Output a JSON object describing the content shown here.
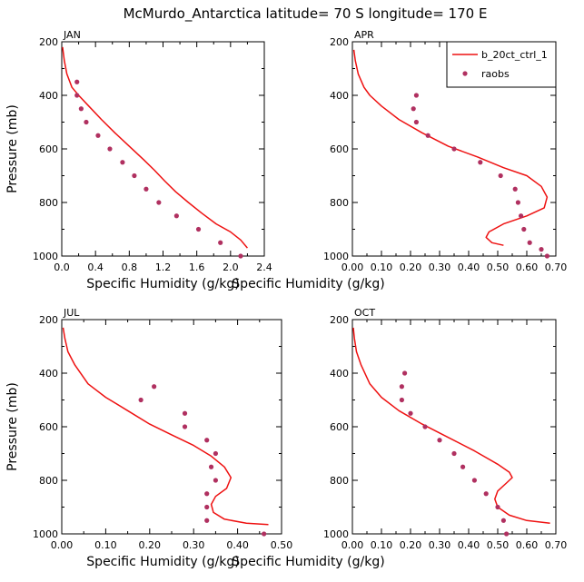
{
  "figure": {
    "title": "McMurdo_Antarctica  latitude= 70 S longitude= 170 E"
  },
  "colors": {
    "model": "#ee1111",
    "obs": "#b03060",
    "axis": "#000000"
  },
  "legend": {
    "model": "b_20ct_ctrl_1",
    "obs": "raobs",
    "placement": "top-right of APR panel"
  },
  "chart_data": [
    {
      "type": "scatter",
      "panel": "JAN",
      "title": "JAN",
      "xlabel": "Specific Humidity (g/kg)",
      "ylabel": "Pressure (mb)",
      "xlim": [
        0,
        2.4
      ],
      "ylim": [
        1000,
        200
      ],
      "y_inverted": true,
      "xticks": [
        "0.0",
        "0.4",
        "0.8",
        "1.2",
        "1.6",
        "2.0",
        "2.4"
      ],
      "yticks": [
        "200",
        "400",
        "600",
        "800",
        "1000"
      ],
      "xtick_values": [
        0,
        0.4,
        0.8,
        1.2,
        1.6,
        2.0,
        2.4
      ],
      "ytick_values": [
        200,
        400,
        600,
        800,
        1000
      ],
      "series": [
        {
          "name": "b_20ct_ctrl_1",
          "kind": "line",
          "x": [
            0.01,
            0.03,
            0.06,
            0.12,
            0.2,
            0.32,
            0.47,
            0.63,
            0.8,
            0.97,
            1.1,
            1.22,
            1.35,
            1.5,
            1.66,
            1.83,
            2.0,
            2.12,
            2.2
          ],
          "y": [
            220,
            270,
            320,
            370,
            400,
            440,
            490,
            540,
            590,
            640,
            680,
            720,
            760,
            800,
            840,
            880,
            910,
            940,
            970
          ]
        },
        {
          "name": "raobs",
          "kind": "scatter",
          "x": [
            0.18,
            0.18,
            0.23,
            0.29,
            0.43,
            0.57,
            0.72,
            0.86,
            1.0,
            1.15,
            1.36,
            1.62,
            1.88,
            2.12
          ],
          "y": [
            350,
            400,
            450,
            500,
            550,
            600,
            650,
            700,
            750,
            800,
            850,
            900,
            950,
            1000
          ]
        }
      ]
    },
    {
      "type": "scatter",
      "panel": "APR",
      "title": "APR",
      "xlabel": "Specific Humidity (g/kg)",
      "ylabel": "",
      "xlim": [
        0,
        0.7
      ],
      "ylim": [
        1000,
        200
      ],
      "y_inverted": true,
      "xticks": [
        "0.00",
        "0.10",
        "0.20",
        "0.30",
        "0.40",
        "0.50",
        "0.60",
        "0.70"
      ],
      "yticks": [
        "200",
        "400",
        "600",
        "800",
        "1000"
      ],
      "xtick_values": [
        0,
        0.1,
        0.2,
        0.3,
        0.4,
        0.5,
        0.6,
        0.7
      ],
      "ytick_values": [
        200,
        400,
        600,
        800,
        1000
      ],
      "series": [
        {
          "name": "b_20ct_ctrl_1",
          "kind": "line",
          "x": [
            0.005,
            0.01,
            0.02,
            0.04,
            0.06,
            0.1,
            0.16,
            0.24,
            0.33,
            0.43,
            0.52,
            0.6,
            0.65,
            0.67,
            0.66,
            0.6,
            0.52,
            0.47,
            0.46,
            0.48,
            0.52
          ],
          "y": [
            230,
            270,
            320,
            370,
            400,
            440,
            490,
            540,
            590,
            630,
            670,
            700,
            740,
            780,
            820,
            850,
            880,
            910,
            930,
            950,
            960
          ]
        },
        {
          "name": "raobs",
          "kind": "scatter",
          "x": [
            0.22,
            0.21,
            0.22,
            0.26,
            0.35,
            0.44,
            0.51,
            0.56,
            0.57,
            0.58,
            0.59,
            0.61,
            0.65,
            0.67
          ],
          "y": [
            400,
            450,
            500,
            550,
            600,
            650,
            700,
            750,
            800,
            850,
            900,
            950,
            975,
            1000
          ]
        }
      ]
    },
    {
      "type": "scatter",
      "panel": "JUL",
      "title": "JUL",
      "xlabel": "Specific Humidity (g/kg)",
      "ylabel": "Pressure (mb)",
      "xlim": [
        0,
        0.5
      ],
      "ylim": [
        1000,
        200
      ],
      "y_inverted": true,
      "xticks": [
        "0.00",
        "0.10",
        "0.20",
        "0.30",
        "0.40",
        "0.50"
      ],
      "yticks": [
        "200",
        "400",
        "600",
        "800",
        "1000"
      ],
      "xtick_values": [
        0,
        0.1,
        0.2,
        0.3,
        0.4,
        0.5
      ],
      "ytick_values": [
        200,
        400,
        600,
        800,
        1000
      ],
      "series": [
        {
          "name": "b_20ct_ctrl_1",
          "kind": "line",
          "x": [
            0.003,
            0.007,
            0.014,
            0.03,
            0.06,
            0.1,
            0.15,
            0.2,
            0.25,
            0.3,
            0.34,
            0.37,
            0.385,
            0.375,
            0.35,
            0.34,
            0.345,
            0.37,
            0.42,
            0.47
          ],
          "y": [
            230,
            270,
            320,
            370,
            440,
            490,
            540,
            590,
            630,
            670,
            710,
            750,
            790,
            830,
            860,
            890,
            920,
            945,
            960,
            965
          ]
        },
        {
          "name": "raobs",
          "kind": "scatter",
          "x": [
            0.21,
            0.18,
            0.28,
            0.28,
            0.33,
            0.35,
            0.34,
            0.35,
            0.33,
            0.33,
            0.33,
            0.46
          ],
          "y": [
            450,
            500,
            550,
            600,
            650,
            700,
            750,
            800,
            850,
            900,
            950,
            1000
          ]
        }
      ]
    },
    {
      "type": "scatter",
      "panel": "OCT",
      "title": "OCT",
      "xlabel": "Specific Humidity (g/kg)",
      "ylabel": "",
      "xlim": [
        0,
        0.7
      ],
      "ylim": [
        1000,
        200
      ],
      "y_inverted": true,
      "xticks": [
        "0.00",
        "0.10",
        "0.20",
        "0.30",
        "0.40",
        "0.50",
        "0.60",
        "0.70"
      ],
      "yticks": [
        "200",
        "400",
        "600",
        "800",
        "1000"
      ],
      "xtick_values": [
        0,
        0.1,
        0.2,
        0.3,
        0.4,
        0.5,
        0.6,
        0.7
      ],
      "ytick_values": [
        200,
        400,
        600,
        800,
        1000
      ],
      "series": [
        {
          "name": "b_20ct_ctrl_1",
          "kind": "line",
          "x": [
            0.003,
            0.007,
            0.014,
            0.03,
            0.06,
            0.1,
            0.16,
            0.24,
            0.33,
            0.42,
            0.5,
            0.54,
            0.55,
            0.53,
            0.5,
            0.49,
            0.5,
            0.54,
            0.6,
            0.68
          ],
          "y": [
            230,
            270,
            320,
            370,
            440,
            490,
            540,
            590,
            640,
            690,
            740,
            770,
            790,
            810,
            840,
            870,
            900,
            930,
            950,
            960
          ]
        },
        {
          "name": "raobs",
          "kind": "scatter",
          "x": [
            0.18,
            0.17,
            0.17,
            0.2,
            0.25,
            0.3,
            0.35,
            0.38,
            0.42,
            0.46,
            0.5,
            0.52,
            0.53
          ],
          "y": [
            400,
            450,
            500,
            550,
            600,
            650,
            700,
            750,
            800,
            850,
            900,
            950,
            1000
          ]
        }
      ]
    }
  ]
}
